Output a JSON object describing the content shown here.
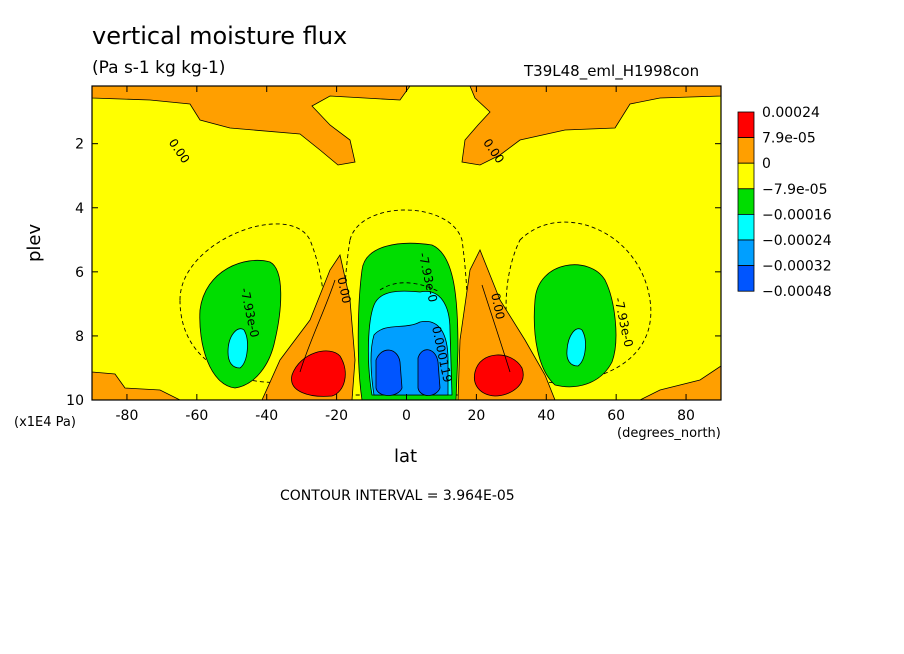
{
  "title": "vertical moisture flux",
  "subtitle": "(Pa s-1 kg kg-1)",
  "run_name": "T39L48_eml_H1998con",
  "y_unit": "(x1E4 Pa)",
  "x_unit": "(degrees_north)",
  "contour_interval": "CONTOUR INTERVAL = 3.964E-05",
  "colors": {
    "c1": "#ff0000",
    "c2": "#ff9f00",
    "c3": "#ffff00",
    "c4": "#00dd00",
    "c5": "#00ffff",
    "c6": "#009fff",
    "c7": "#0055ff"
  },
  "chart_data": {
    "type": "heatmap",
    "xlabel": "lat",
    "ylabel": "plev",
    "xlim": [
      -90,
      90
    ],
    "ylim": [
      10,
      0.2
    ],
    "xticks": [
      -80,
      -60,
      -40,
      -20,
      0,
      20,
      40,
      60,
      80
    ],
    "yticks": [
      2,
      4,
      6,
      8,
      10
    ],
    "legend": {
      "placement": "right",
      "labels": [
        "0.00024",
        "7.9e-05",
        "0",
        "−7.9e-05",
        "−0.00016",
        "−0.00024",
        "−0.00032",
        "−0.00048"
      ]
    },
    "contour_labels": [
      {
        "text": "0.00",
        "lat": -66,
        "plev": 2.3
      },
      {
        "text": "0.00",
        "lat": 24,
        "plev": 2.3
      },
      {
        "text": "0.00",
        "lat": -19,
        "plev": 6.6
      },
      {
        "text": "0.00",
        "lat": 25,
        "plev": 7.1
      },
      {
        "text": "-7.93e-0",
        "lat": -46,
        "plev": 7.3
      },
      {
        "text": "-7.93e-0",
        "lat": 5,
        "plev": 6.2
      },
      {
        "text": "-7.93e-0",
        "lat": 61,
        "plev": 7.6
      },
      {
        "text": "0.000119",
        "lat": 9,
        "plev": 8.6
      }
    ]
  }
}
